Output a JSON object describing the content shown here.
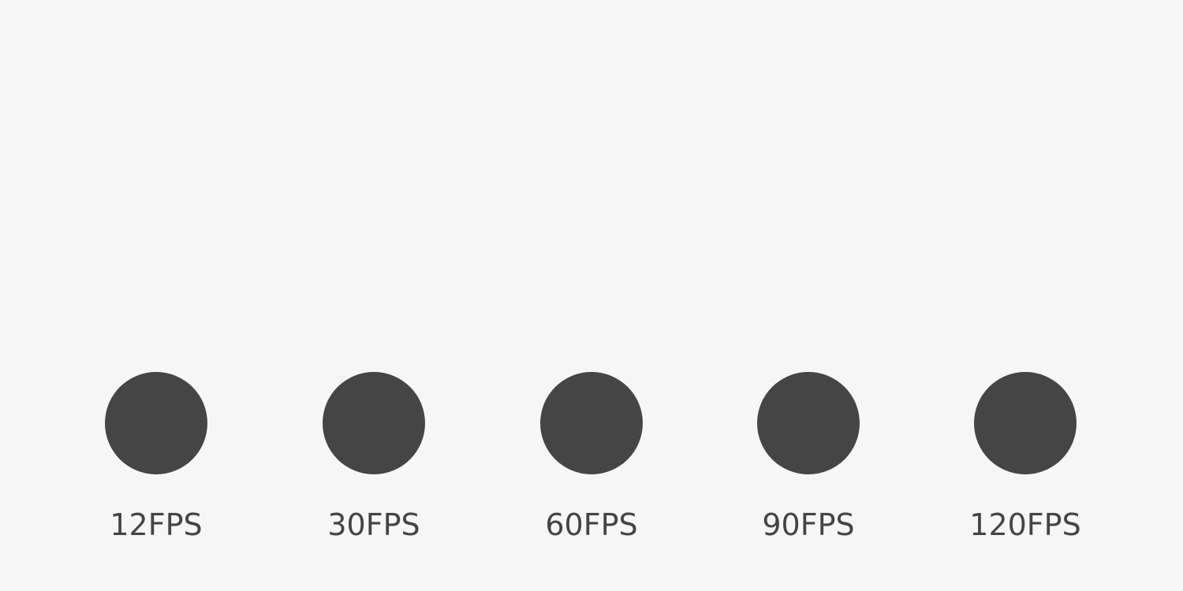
{
  "colors": {
    "background": "#f6f6f6",
    "ball": "#454545",
    "label": "#444444"
  },
  "demos": [
    {
      "label": "12FPS"
    },
    {
      "label": "30FPS"
    },
    {
      "label": "60FPS"
    },
    {
      "label": "90FPS"
    },
    {
      "label": "120FPS"
    }
  ]
}
